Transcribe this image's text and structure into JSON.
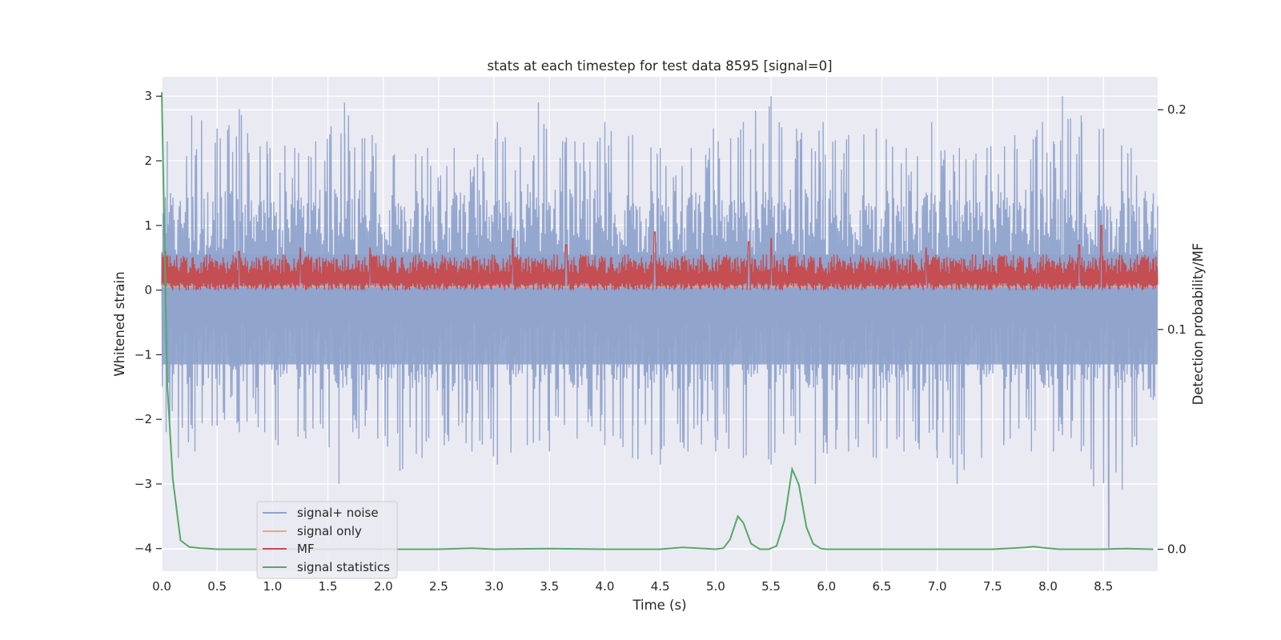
{
  "chart_data": {
    "type": "line",
    "title": "stats at each timestep for test data 8595 [signal=0]",
    "xlabel": "Time (s)",
    "ylabel": "Whitened strain",
    "y2label": "Detection probability/MF",
    "xlim": [
      0.0,
      8.99
    ],
    "ylim": [
      -4.35,
      3.3
    ],
    "y2lim": [
      -0.01,
      0.215
    ],
    "xticks": [
      0.0,
      0.5,
      1.0,
      1.5,
      2.0,
      2.5,
      3.0,
      3.5,
      4.0,
      4.5,
      5.0,
      5.5,
      6.0,
      6.5,
      7.0,
      7.5,
      8.0,
      8.5
    ],
    "xtick_labels": [
      "0.0",
      "0.5",
      "1.0",
      "1.5",
      "2.0",
      "2.5",
      "3.0",
      "3.5",
      "4.0",
      "4.5",
      "5.0",
      "5.5",
      "6.0",
      "6.5",
      "7.0",
      "7.5",
      "8.0",
      "8.5"
    ],
    "yticks": [
      3,
      2,
      1,
      0,
      -1,
      -2,
      -3,
      -4
    ],
    "ytick_labels": [
      "3",
      "2",
      "1",
      "0",
      "−1",
      "−2",
      "−3",
      "−4"
    ],
    "y2ticks": [
      0.2,
      0.1,
      0.0
    ],
    "y2tick_labels": [
      "0.2",
      "0.1",
      "0.0"
    ],
    "grid": true,
    "legend_position": "lower-left",
    "series": [
      {
        "name": "signal+ noise",
        "color": "#8fa3cc",
        "axis": "left",
        "kind": "noise envelope",
        "peaks_hi": [
          [
            0.05,
            2.3
          ],
          [
            0.27,
            2.7
          ],
          [
            0.5,
            2.5
          ],
          [
            0.7,
            2.8
          ],
          [
            0.95,
            2.3
          ],
          [
            1.2,
            2.2
          ],
          [
            1.39,
            2.3
          ],
          [
            1.65,
            2.9
          ],
          [
            1.9,
            2.4
          ],
          [
            2.1,
            2.1
          ],
          [
            2.4,
            2.2
          ],
          [
            2.64,
            2.2
          ],
          [
            2.85,
            2.1
          ],
          [
            3.03,
            2.6
          ],
          [
            3.35,
            2.0
          ],
          [
            3.4,
            2.9
          ],
          [
            3.73,
            2.3
          ],
          [
            4.0,
            2.6
          ],
          [
            4.25,
            2.4
          ],
          [
            4.5,
            2.2
          ],
          [
            4.78,
            2.2
          ],
          [
            4.98,
            2.5
          ],
          [
            5.25,
            2.6
          ],
          [
            5.5,
            3.0
          ],
          [
            5.73,
            2.5
          ],
          [
            5.97,
            2.6
          ],
          [
            6.2,
            2.4
          ],
          [
            6.45,
            2.5
          ],
          [
            6.72,
            2.2
          ],
          [
            6.95,
            2.6
          ],
          [
            7.2,
            2.2
          ],
          [
            7.45,
            2.2
          ],
          [
            7.7,
            2.4
          ],
          [
            7.95,
            2.6
          ],
          [
            8.05,
            2.3
          ],
          [
            8.13,
            3.0
          ],
          [
            8.3,
            2.7
          ],
          [
            8.5,
            2.5
          ],
          [
            8.75,
            2.2
          ],
          [
            8.95,
            1.5
          ]
        ],
        "peaks_lo": [
          [
            0.04,
            -2.2
          ],
          [
            0.15,
            -2.6
          ],
          [
            0.3,
            -2.5
          ],
          [
            0.5,
            -2.1
          ],
          [
            0.7,
            -2.2
          ],
          [
            0.93,
            -2.2
          ],
          [
            1.05,
            -2.4
          ],
          [
            1.3,
            -2.3
          ],
          [
            1.6,
            -3.0
          ],
          [
            1.78,
            -2.3
          ],
          [
            1.95,
            -2.3
          ],
          [
            2.15,
            -2.8
          ],
          [
            2.35,
            -2.6
          ],
          [
            2.55,
            -2.4
          ],
          [
            2.8,
            -2.5
          ],
          [
            3.03,
            -2.7
          ],
          [
            3.3,
            -2.4
          ],
          [
            3.5,
            -2.5
          ],
          [
            3.75,
            -2.3
          ],
          [
            4.0,
            -2.4
          ],
          [
            4.25,
            -2.6
          ],
          [
            4.5,
            -2.7
          ],
          [
            4.75,
            -2.5
          ],
          [
            5.0,
            -2.5
          ],
          [
            5.25,
            -2.6
          ],
          [
            5.5,
            -2.7
          ],
          [
            5.72,
            -2.4
          ],
          [
            5.9,
            -3.0
          ],
          [
            6.2,
            -2.5
          ],
          [
            6.45,
            -2.6
          ],
          [
            6.7,
            -2.5
          ],
          [
            7.0,
            -2.6
          ],
          [
            7.18,
            -3.0
          ],
          [
            7.4,
            -2.6
          ],
          [
            7.6,
            -2.4
          ],
          [
            7.85,
            -2.5
          ],
          [
            8.05,
            -2.5
          ],
          [
            8.3,
            -2.5
          ],
          [
            8.55,
            -4.0
          ],
          [
            8.8,
            -2.4
          ],
          [
            8.95,
            -1.7
          ]
        ],
        "body_hi": 1.2,
        "body_lo": -1.2
      },
      {
        "name": "signal only",
        "color": "#e8a58a",
        "axis": "left",
        "level": 0.05
      },
      {
        "name": "MF",
        "color": "#c44e52",
        "axis": "left",
        "base": 0.0,
        "top_typical": 0.55,
        "spikes": [
          [
            0.03,
            0.6
          ],
          [
            0.7,
            0.6
          ],
          [
            1.25,
            0.65
          ],
          [
            1.88,
            0.65
          ],
          [
            3.17,
            0.8
          ],
          [
            3.65,
            0.7
          ],
          [
            4.45,
            0.9
          ],
          [
            5.3,
            0.75
          ],
          [
            5.5,
            0.8
          ],
          [
            6.9,
            0.65
          ],
          [
            8.28,
            0.7
          ],
          [
            8.48,
            1.0
          ]
        ]
      },
      {
        "name": "signal statistics",
        "color": "#55a868",
        "axis": "right",
        "x": [
          0.0,
          0.05,
          0.1,
          0.17,
          0.25,
          0.35,
          0.5,
          0.7,
          1.0,
          1.5,
          2.0,
          2.5,
          2.8,
          3.0,
          3.5,
          4.0,
          4.5,
          4.7,
          5.0,
          5.07,
          5.13,
          5.2,
          5.25,
          5.32,
          5.4,
          5.48,
          5.55,
          5.62,
          5.69,
          5.75,
          5.82,
          5.88,
          5.95,
          6.0,
          6.5,
          7.0,
          7.5,
          7.8,
          7.87,
          7.95,
          8.1,
          8.5,
          8.7,
          8.95
        ],
        "values": [
          0.208,
          0.075,
          0.032,
          0.004,
          0.001,
          0.0005,
          0.0,
          0.0,
          0.0,
          0.0,
          0.0,
          0.0,
          0.0005,
          0.0,
          0.0003,
          0.0,
          0.0,
          0.0008,
          0.0,
          0.0005,
          0.0045,
          0.015,
          0.012,
          0.0025,
          0.0,
          0.0,
          0.0015,
          0.013,
          0.0365,
          0.0295,
          0.01,
          0.0025,
          0.0003,
          0.0,
          0.0,
          0.0,
          0.0,
          0.0008,
          0.0012,
          0.0007,
          0.0,
          0.0,
          0.0003,
          0.0
        ]
      }
    ]
  }
}
